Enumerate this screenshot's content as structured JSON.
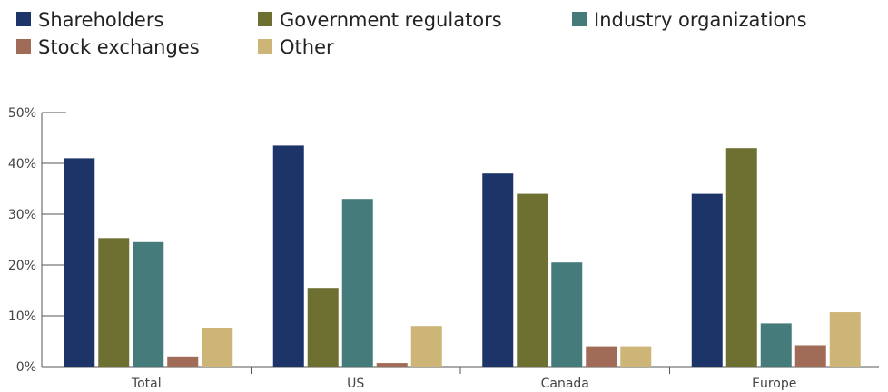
{
  "chart_data": {
    "type": "bar",
    "categories": [
      "Total",
      "US",
      "Canada",
      "Europe"
    ],
    "series": [
      {
        "name": "Shareholders",
        "color": "#1c3468",
        "values": [
          41,
          43.5,
          38,
          34
        ]
      },
      {
        "name": "Government regulators",
        "color": "#6e7032",
        "values": [
          25.3,
          15.5,
          34,
          43
        ]
      },
      {
        "name": "Industry organizations",
        "color": "#457b7b",
        "values": [
          24.5,
          33,
          20.5,
          8.5
        ]
      },
      {
        "name": "Stock exchanges",
        "color": "#a06c58",
        "values": [
          2,
          0.7,
          4,
          4.2
        ]
      },
      {
        "name": "Other",
        "color": "#cdb577",
        "values": [
          7.5,
          8,
          4,
          10.7
        ]
      }
    ],
    "yticks": [
      "0%",
      "10%",
      "20%",
      "30%",
      "40%",
      "50%"
    ],
    "ylim": [
      0,
      50
    ],
    "legend_position": "top-left",
    "grid": false
  }
}
